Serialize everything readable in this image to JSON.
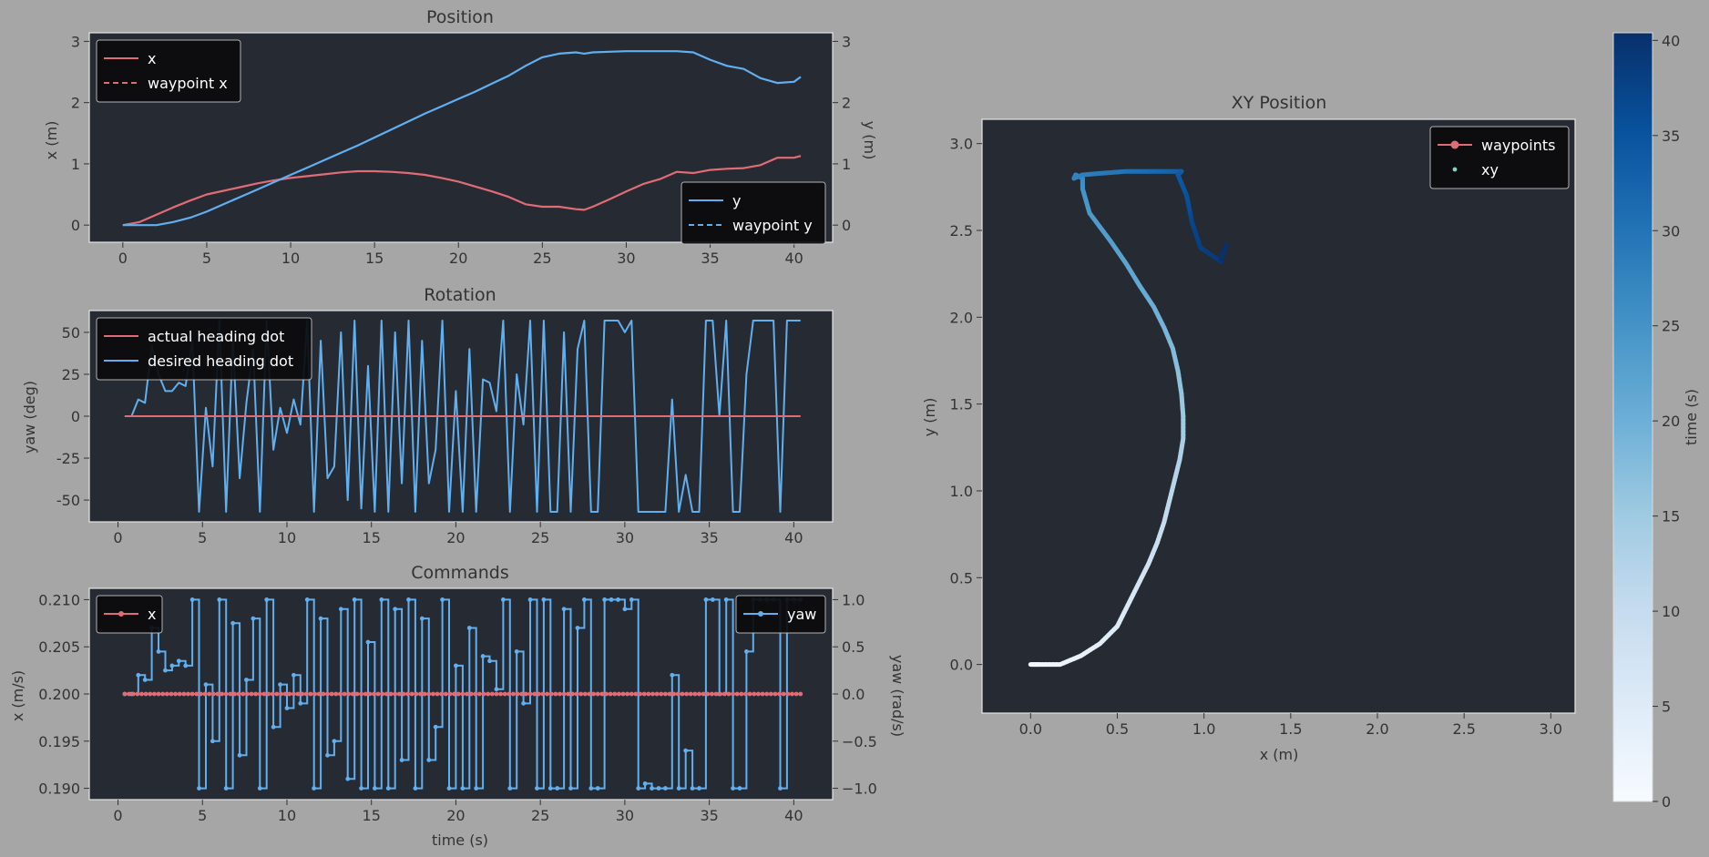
{
  "colors": {
    "figure_bg": "#a6a6a6",
    "axes_bg": "#262a33",
    "axes_border": "#e6e6e6",
    "text": "#333333",
    "red": "#e06c75",
    "blue": "#61afef",
    "legend_bg": "#0b0b0d",
    "legend_text": "#ffffff",
    "cmap_low": "#f7fbff",
    "cmap_high": "#08306b"
  },
  "chart_data": [
    {
      "id": "position",
      "type": "line",
      "title": "Position",
      "xlabel": "",
      "ylabel": "x (m)",
      "ylabel_right": "y (m)",
      "xlim": [
        -2,
        42.3
      ],
      "ylim": [
        -0.28,
        3.14
      ],
      "ylim_right": [
        -0.28,
        3.14
      ],
      "xticks": [
        0,
        5,
        10,
        15,
        20,
        25,
        30,
        35,
        40
      ],
      "yticks": [
        0,
        1,
        2,
        3
      ],
      "yticks_right": [
        0,
        1,
        2,
        3
      ],
      "grid": false,
      "legend_left": {
        "placement": "upper-left",
        "entries": [
          "x",
          "waypoint x"
        ]
      },
      "legend_right": {
        "placement": "lower-right",
        "entries": [
          "y",
          "waypoint y"
        ]
      },
      "series": [
        {
          "name": "x",
          "axis": "left",
          "style": "solid",
          "color": "red",
          "x": [
            0,
            1,
            2,
            3,
            4,
            5,
            6,
            7,
            8,
            9,
            10,
            11,
            12,
            13,
            14,
            15,
            16,
            17,
            18,
            19,
            20,
            21,
            22,
            23,
            24,
            25,
            26,
            27,
            27.5,
            28,
            29,
            30,
            31,
            32,
            33,
            34,
            35,
            36,
            37,
            38,
            39,
            40,
            40.4
          ],
          "y": [
            0,
            0.05,
            0.17,
            0.29,
            0.4,
            0.5,
            0.56,
            0.62,
            0.68,
            0.73,
            0.77,
            0.8,
            0.83,
            0.86,
            0.88,
            0.88,
            0.87,
            0.85,
            0.82,
            0.77,
            0.71,
            0.63,
            0.55,
            0.46,
            0.34,
            0.3,
            0.3,
            0.26,
            0.25,
            0.3,
            0.42,
            0.55,
            0.67,
            0.75,
            0.87,
            0.85,
            0.9,
            0.92,
            0.93,
            0.98,
            1.1,
            1.1,
            1.13
          ]
        },
        {
          "name": "waypoint x",
          "axis": "left",
          "style": "dashed",
          "color": "red",
          "x": [],
          "y": []
        },
        {
          "name": "y",
          "axis": "right",
          "style": "solid",
          "color": "blue",
          "x": [
            0,
            1,
            2,
            3,
            4,
            5,
            6,
            7,
            8,
            9,
            10,
            11,
            12,
            13,
            14,
            15,
            16,
            17,
            18,
            19,
            20,
            21,
            22,
            23,
            24,
            25,
            26,
            27,
            27.5,
            28,
            29,
            30,
            31,
            32,
            33,
            34,
            35,
            36,
            37,
            38,
            39,
            40,
            40.4
          ],
          "y": [
            0,
            0,
            0,
            0.05,
            0.12,
            0.22,
            0.34,
            0.46,
            0.58,
            0.7,
            0.82,
            0.94,
            1.06,
            1.18,
            1.3,
            1.43,
            1.56,
            1.69,
            1.82,
            1.94,
            2.06,
            2.18,
            2.31,
            2.44,
            2.6,
            2.74,
            2.8,
            2.82,
            2.8,
            2.82,
            2.83,
            2.84,
            2.84,
            2.84,
            2.84,
            2.82,
            2.7,
            2.6,
            2.55,
            2.4,
            2.32,
            2.34,
            2.42
          ]
        },
        {
          "name": "waypoint y",
          "axis": "right",
          "style": "dashed",
          "color": "blue",
          "x": [],
          "y": []
        }
      ]
    },
    {
      "id": "rotation",
      "type": "line",
      "title": "Rotation",
      "xlabel": "",
      "ylabel": "yaw (deg)",
      "xlim": [
        -1.7,
        42.3
      ],
      "ylim": [
        -63,
        63
      ],
      "xticks": [
        0,
        5,
        10,
        15,
        20,
        25,
        30,
        35,
        40
      ],
      "yticks": [
        -50,
        -25,
        0,
        25,
        50
      ],
      "grid": false,
      "legend": {
        "placement": "upper-left",
        "entries": [
          "actual heading dot",
          "desired heading dot"
        ]
      },
      "series": [
        {
          "name": "actual heading dot",
          "color": "red",
          "x": [
            0.4,
            40.4
          ],
          "y": [
            0,
            0
          ]
        },
        {
          "name": "desired heading dot",
          "color": "blue",
          "x": [
            0.4,
            0.8,
            1.2,
            1.6,
            2.0,
            2.4,
            2.8,
            3.2,
            3.6,
            4.0,
            4.4,
            4.8,
            5.2,
            5.6,
            6.0,
            6.4,
            6.8,
            7.2,
            7.6,
            8.0,
            8.4,
            8.8,
            9.2,
            9.6,
            10.0,
            10.4,
            10.8,
            11.2,
            11.6,
            12.0,
            12.4,
            12.8,
            13.2,
            13.6,
            14.0,
            14.4,
            14.8,
            15.2,
            15.6,
            16.0,
            16.4,
            16.8,
            17.2,
            17.6,
            18.0,
            18.4,
            18.8,
            19.2,
            19.6,
            20.0,
            20.4,
            20.8,
            21.2,
            21.6,
            22.0,
            22.4,
            22.8,
            23.2,
            23.6,
            24.0,
            24.4,
            24.8,
            25.2,
            25.6,
            26.0,
            26.4,
            26.8,
            27.2,
            27.6,
            28.0,
            28.4,
            28.8,
            29.2,
            29.6,
            30.0,
            30.4,
            30.8,
            31.2,
            31.6,
            32.0,
            32.4,
            32.8,
            33.2,
            33.6,
            34.0,
            34.4,
            34.8,
            35.2,
            35.6,
            36.0,
            36.4,
            36.8,
            37.2,
            37.6,
            38.0,
            38.4,
            38.8,
            39.2,
            39.6,
            40.0,
            40.4
          ],
          "y": [
            0,
            0,
            10,
            8,
            42,
            25,
            15,
            15,
            20,
            18,
            45,
            -57,
            5,
            -30,
            57,
            -57,
            45,
            -37,
            8,
            40,
            -57,
            57,
            -20,
            5,
            -10,
            10,
            -5,
            57,
            -57,
            45,
            -37,
            -30,
            50,
            -50,
            57,
            -55,
            30,
            -57,
            57,
            -57,
            50,
            -40,
            57,
            -57,
            45,
            -40,
            -20,
            57,
            -57,
            15,
            -57,
            40,
            -57,
            22,
            20,
            3,
            57,
            -57,
            25,
            -5,
            57,
            -57,
            57,
            -57,
            -57,
            50,
            -57,
            40,
            57,
            -57,
            -57,
            57,
            57,
            57,
            50,
            57,
            -57,
            -57,
            -57,
            -57,
            -57,
            10,
            -57,
            -35,
            -57,
            -57,
            57,
            57,
            0,
            57,
            -57,
            -57,
            25,
            57,
            57,
            57,
            57,
            -57,
            57,
            57,
            57
          ]
        }
      ]
    },
    {
      "id": "commands",
      "type": "line",
      "title": "Commands",
      "xlabel": "time (s)",
      "ylabel": "x (m/s)",
      "ylabel_right": "yaw (rad/s)",
      "xlim": [
        -1.7,
        42.3
      ],
      "ylim": [
        0.1888,
        0.2112
      ],
      "ylim_right": [
        -1.12,
        1.12
      ],
      "xticks": [
        0,
        5,
        10,
        15,
        20,
        25,
        30,
        35,
        40
      ],
      "yticks": [
        0.19,
        0.195,
        0.2,
        0.205,
        0.21
      ],
      "ytick_labels": [
        "0.190",
        "0.195",
        "0.200",
        "0.205",
        "0.210"
      ],
      "yticks_right": [
        -1.0,
        -0.5,
        0.0,
        0.5,
        1.0
      ],
      "ytick_labels_right": [
        "−1.0",
        "−0.5",
        "0.0",
        "0.5",
        "1.0"
      ],
      "grid": false,
      "legend_left": {
        "placement": "upper-left",
        "entries": [
          "x"
        ]
      },
      "legend_right": {
        "placement": "upper-right",
        "entries": [
          "yaw"
        ]
      },
      "series": [
        {
          "name": "x",
          "axis": "left",
          "style": "marker-line",
          "color": "red",
          "x_range": [
            0.4,
            40.4,
            0.25
          ],
          "y_const": 0.2
        },
        {
          "name": "yaw",
          "axis": "right",
          "style": "step",
          "color": "blue",
          "x": [
            0.4,
            0.8,
            1.2,
            1.6,
            2.0,
            2.4,
            2.8,
            3.2,
            3.6,
            4.0,
            4.4,
            4.8,
            5.2,
            5.6,
            6.0,
            6.4,
            6.8,
            7.2,
            7.6,
            8.0,
            8.4,
            8.8,
            9.2,
            9.6,
            10.0,
            10.4,
            10.8,
            11.2,
            11.6,
            12.0,
            12.4,
            12.8,
            13.2,
            13.6,
            14.0,
            14.4,
            14.8,
            15.2,
            15.6,
            16.0,
            16.4,
            16.8,
            17.2,
            17.6,
            18.0,
            18.4,
            18.8,
            19.2,
            19.6,
            20.0,
            20.4,
            20.8,
            21.2,
            21.6,
            22.0,
            22.4,
            22.8,
            23.2,
            23.6,
            24.0,
            24.4,
            24.8,
            25.2,
            25.6,
            26.0,
            26.4,
            26.8,
            27.2,
            27.6,
            28.0,
            28.4,
            28.8,
            29.2,
            29.6,
            30.0,
            30.4,
            30.8,
            31.2,
            31.6,
            32.0,
            32.4,
            32.8,
            33.2,
            33.6,
            34.0,
            34.4,
            34.8,
            35.2,
            35.6,
            36.0,
            36.4,
            36.8,
            37.2,
            37.6,
            38.0,
            38.4,
            38.8,
            39.2,
            39.6,
            40.0,
            40.4
          ],
          "y": [
            0,
            0,
            0.2,
            0.15,
            0.7,
            0.45,
            0.25,
            0.3,
            0.35,
            0.3,
            1,
            -1,
            0.1,
            -0.5,
            1,
            -1,
            0.75,
            -0.65,
            0.15,
            0.8,
            -1,
            1,
            -0.35,
            0.1,
            -0.15,
            0.2,
            -0.1,
            1,
            -1,
            0.8,
            -0.65,
            -0.5,
            0.9,
            -0.9,
            1,
            -1,
            0.55,
            -1,
            1,
            -1,
            0.9,
            -0.7,
            1,
            -1,
            0.8,
            -0.7,
            -0.35,
            1,
            -1,
            0.3,
            -1,
            0.7,
            -1,
            0.4,
            0.35,
            0.05,
            1,
            -1,
            0.45,
            -0.1,
            1,
            -1,
            1,
            -1,
            -1,
            0.9,
            -1,
            0.7,
            1,
            -1,
            -1,
            1,
            1,
            1,
            0.9,
            1,
            -1,
            -0.95,
            -1,
            -1,
            -1,
            0.2,
            -1,
            -0.6,
            -1,
            -1,
            1,
            1,
            0,
            1,
            -1,
            -1,
            0.45,
            1,
            1,
            1,
            1,
            -1,
            1,
            1,
            1
          ]
        }
      ]
    },
    {
      "id": "xy",
      "type": "scatter",
      "title": "XY Position",
      "xlabel": "x (m)",
      "ylabel": "y (m)",
      "xlim": [
        -0.28,
        3.14
      ],
      "ylim": [
        -0.28,
        3.14
      ],
      "xticks": [
        0.0,
        0.5,
        1.0,
        1.5,
        2.0,
        2.5,
        3.0
      ],
      "yticks": [
        0.0,
        0.5,
        1.0,
        1.5,
        2.0,
        2.5,
        3.0
      ],
      "tick_labels": [
        "0.0",
        "0.5",
        "1.0",
        "1.5",
        "2.0",
        "2.5",
        "3.0"
      ],
      "grid": false,
      "legend": {
        "placement": "upper-right",
        "entries": [
          "waypoints",
          "xy"
        ]
      },
      "path": {
        "t": [
          0,
          1,
          2,
          3,
          4,
          5,
          6,
          7,
          8,
          9,
          10,
          11,
          12,
          13,
          14,
          15,
          16,
          17,
          18,
          19,
          20,
          21,
          22,
          23,
          24,
          25,
          26,
          27,
          27.5,
          28,
          29,
          30,
          31,
          32,
          33,
          34,
          35,
          36,
          37,
          38,
          39,
          40,
          40.4
        ],
        "x": [
          0,
          0.05,
          0.17,
          0.29,
          0.4,
          0.5,
          0.56,
          0.62,
          0.68,
          0.73,
          0.77,
          0.8,
          0.83,
          0.86,
          0.88,
          0.88,
          0.87,
          0.85,
          0.82,
          0.77,
          0.71,
          0.63,
          0.55,
          0.46,
          0.34,
          0.3,
          0.3,
          0.26,
          0.25,
          0.3,
          0.42,
          0.55,
          0.67,
          0.75,
          0.87,
          0.85,
          0.9,
          0.92,
          0.93,
          0.98,
          1.1,
          1.1,
          1.13
        ],
        "y": [
          0,
          0,
          0,
          0.05,
          0.12,
          0.22,
          0.34,
          0.46,
          0.58,
          0.7,
          0.82,
          0.94,
          1.06,
          1.18,
          1.3,
          1.43,
          1.56,
          1.69,
          1.82,
          1.94,
          2.06,
          2.18,
          2.31,
          2.44,
          2.6,
          2.74,
          2.8,
          2.82,
          2.8,
          2.82,
          2.83,
          2.84,
          2.84,
          2.84,
          2.84,
          2.82,
          2.7,
          2.6,
          2.55,
          2.4,
          2.32,
          2.34,
          2.42
        ]
      },
      "colorbar": {
        "label": "time (s)",
        "vmin": 0,
        "vmax": 40.4,
        "ticks": [
          0,
          5,
          10,
          15,
          20,
          25,
          30,
          35,
          40
        ]
      }
    }
  ]
}
